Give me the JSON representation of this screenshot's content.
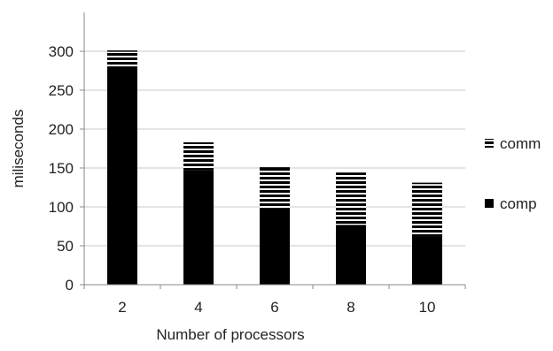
{
  "chart_data": {
    "type": "bar",
    "stacked": true,
    "title": "",
    "xlabel": "Number of processors",
    "ylabel": "miliseconds",
    "categories": [
      "2",
      "4",
      "6",
      "8",
      "10"
    ],
    "series": [
      {
        "name": "comp",
        "values": [
          280,
          147,
          98,
          77,
          62
        ],
        "pattern": "solid",
        "color": "#000000"
      },
      {
        "name": "comm",
        "values": [
          21,
          36,
          53,
          67,
          69
        ],
        "pattern": "horizontal-stripes",
        "color": "#000000"
      }
    ],
    "ylim": [
      0,
      300
    ],
    "yticks": [
      0,
      50,
      100,
      150,
      200,
      250,
      300
    ],
    "grid": true,
    "legend": "right",
    "legend_order": [
      "comm",
      "comp"
    ]
  }
}
